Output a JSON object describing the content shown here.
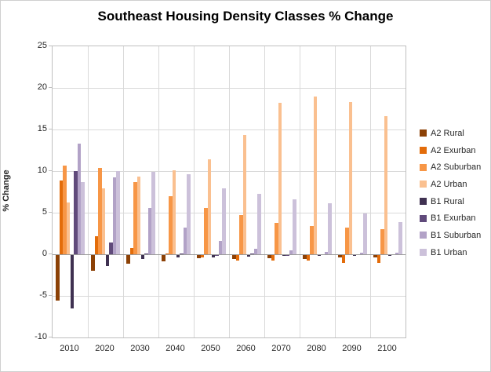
{
  "title": "Southeast Housing Density Classes % Change",
  "chart_data": {
    "type": "bar",
    "title": "Southeast Housing Density Classes % Change",
    "xlabel": "",
    "ylabel": "% Change",
    "ylim": [
      -10,
      25
    ],
    "ytick_step": 5,
    "yticks": [
      25,
      20,
      15,
      10,
      5,
      0,
      -5,
      -10
    ],
    "grid": true,
    "legend_position": "right",
    "categories": [
      "2010",
      "2020",
      "2030",
      "2040",
      "2050",
      "2060",
      "2070",
      "2080",
      "2090",
      "2100"
    ],
    "series": [
      {
        "name": "A2 Rural",
        "color": "#8C4106",
        "values": [
          -5.5,
          -1.9,
          -1.0,
          -0.8,
          -0.4,
          -0.5,
          -0.4,
          -0.5,
          -0.3,
          -0.3
        ]
      },
      {
        "name": "A2 Exurban",
        "color": "#E36C0A",
        "values": [
          8.9,
          2.2,
          0.8,
          0.1,
          -0.3,
          -0.7,
          -0.7,
          -0.7,
          -0.9,
          -0.9
        ]
      },
      {
        "name": "A2 Suburban",
        "color": "#F79646",
        "values": [
          10.7,
          10.4,
          8.7,
          7.0,
          5.6,
          4.7,
          3.8,
          3.4,
          3.2,
          3.0
        ]
      },
      {
        "name": "A2 Urban",
        "color": "#FAC090",
        "values": [
          6.2,
          7.9,
          9.3,
          10.1,
          11.4,
          14.3,
          18.2,
          19.0,
          18.3,
          16.6
        ]
      },
      {
        "name": "B1 Rural",
        "color": "#3F3151",
        "values": [
          -6.4,
          -1.3,
          -0.5,
          -0.3,
          -0.3,
          -0.2,
          -0.1,
          -0.1,
          -0.1,
          -0.1
        ]
      },
      {
        "name": "B1 Exurban",
        "color": "#604A7B",
        "values": [
          10.0,
          1.4,
          0.1,
          0.1,
          -0.1,
          0.1,
          -0.1,
          0.0,
          0.0,
          0.0
        ]
      },
      {
        "name": "B1 Suburban",
        "color": "#B2A2C7",
        "values": [
          13.3,
          9.2,
          5.6,
          3.2,
          1.6,
          0.7,
          0.5,
          0.3,
          0.2,
          0.2
        ]
      },
      {
        "name": "B1 Urban",
        "color": "#CCC1DA",
        "values": [
          8.7,
          10.0,
          9.9,
          9.6,
          7.9,
          7.3,
          6.6,
          6.1,
          4.9,
          3.9
        ]
      }
    ],
    "style": {
      "gridline_color": "#D9D9D9",
      "zero_line_color": "#9A9A9A",
      "plot_border_color": "#BFBFBF",
      "text_color": "#262626"
    }
  }
}
